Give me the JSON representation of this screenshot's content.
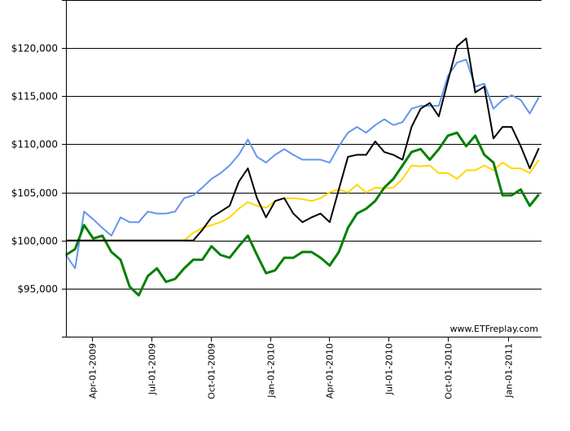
{
  "chart_data": {
    "type": "line",
    "title": "",
    "xlabel": "",
    "ylabel": "",
    "xlim": [
      "2009-02-20",
      "2011-02-22"
    ],
    "ylim": [
      90000,
      125000
    ],
    "grid": "horizontal",
    "legend": "none",
    "watermark": "www.ETFreplay.com",
    "y_ticks": [
      {
        "value": 95000,
        "label": "$95,000"
      },
      {
        "value": 100000,
        "label": "$100,000"
      },
      {
        "value": 105000,
        "label": "$105,000"
      },
      {
        "value": 110000,
        "label": "$110,000"
      },
      {
        "value": 115000,
        "label": "$115,000"
      },
      {
        "value": 120000,
        "label": "$120,000"
      }
    ],
    "x_ticks": [
      {
        "date": "2009-04-01",
        "label": "Apr-01-2009"
      },
      {
        "date": "2009-07-01",
        "label": "Jul-01-2009"
      },
      {
        "date": "2009-10-01",
        "label": "Oct-01-2009"
      },
      {
        "date": "2010-01-01",
        "label": "Jan-01-2010"
      },
      {
        "date": "2010-04-01",
        "label": "Apr-01-2010"
      },
      {
        "date": "2010-07-01",
        "label": "Jul-01-2010"
      },
      {
        "date": "2010-10-01",
        "label": "Oct-01-2010"
      },
      {
        "date": "2011-01-01",
        "label": "Jan-01-2011"
      }
    ],
    "x": [
      "2009-02-20",
      "2009-03-06",
      "2009-03-20",
      "2009-04-03",
      "2009-04-17",
      "2009-05-01",
      "2009-05-15",
      "2009-05-29",
      "2009-06-12",
      "2009-06-26",
      "2009-07-10",
      "2009-07-24",
      "2009-08-07",
      "2009-08-21",
      "2009-09-04",
      "2009-09-18",
      "2009-10-02",
      "2009-10-16",
      "2009-10-30",
      "2009-11-13",
      "2009-11-27",
      "2009-12-11",
      "2009-12-25",
      "2010-01-08",
      "2010-01-22",
      "2010-02-05",
      "2010-02-19",
      "2010-03-05",
      "2010-03-19",
      "2010-04-02",
      "2010-04-16",
      "2010-04-30",
      "2010-05-14",
      "2010-05-28",
      "2010-06-11",
      "2010-06-25",
      "2010-07-09",
      "2010-07-23",
      "2010-08-06",
      "2010-08-20",
      "2010-09-03",
      "2010-09-17",
      "2010-10-01",
      "2010-10-15",
      "2010-10-29",
      "2010-11-12",
      "2010-11-26",
      "2010-12-10",
      "2010-12-24",
      "2011-01-07",
      "2011-01-21",
      "2011-02-04",
      "2011-02-18"
    ],
    "series": [
      {
        "color": "#6495ED",
        "values": [
          98500,
          97100,
          103000,
          102200,
          101300,
          100500,
          102400,
          101900,
          101900,
          103000,
          102800,
          102800,
          103000,
          104400,
          104700,
          105500,
          106400,
          107000,
          107800,
          108900,
          110500,
          108700,
          108100,
          108900,
          109500,
          108900,
          108400,
          108400,
          108400,
          108100,
          109800,
          111200,
          111800,
          111200,
          112000,
          112600,
          112000,
          112300,
          113700,
          114000,
          114000,
          114000,
          117100,
          118500,
          118800,
          116000,
          116300,
          113700,
          114600,
          115100,
          114600,
          113200,
          114900
        ]
      },
      {
        "color": "#FFD700",
        "values": [
          100000,
          100000,
          100000,
          100000,
          100000,
          100000,
          100000,
          100000,
          100000,
          100000,
          100000,
          100000,
          100000,
          100000,
          100800,
          101300,
          101600,
          101900,
          102400,
          103300,
          104000,
          103600,
          103400,
          104100,
          104400,
          104400,
          104300,
          104100,
          104400,
          105000,
          105300,
          105000,
          105800,
          105000,
          105500,
          105400,
          105500,
          106400,
          107800,
          107700,
          107800,
          107000,
          107000,
          106400,
          107300,
          107300,
          107800,
          107300,
          108100,
          107500,
          107500,
          107000,
          108400
        ]
      },
      {
        "color": "#008000",
        "values": [
          98500,
          99100,
          101600,
          100200,
          100500,
          98800,
          98000,
          95200,
          94300,
          96300,
          97100,
          95700,
          96000,
          97100,
          98000,
          98000,
          99400,
          98500,
          98200,
          99400,
          100500,
          98500,
          96600,
          96900,
          98200,
          98200,
          98800,
          98800,
          98200,
          97400,
          98800,
          101300,
          102800,
          103300,
          104100,
          105500,
          106400,
          107800,
          109200,
          109500,
          108400,
          109500,
          110900,
          111200,
          109800,
          110900,
          108900,
          108100,
          104700,
          104700,
          105300,
          103600,
          104800
        ]
      },
      {
        "color": "#000000",
        "values": [
          100000,
          100000,
          100000,
          100000,
          100000,
          100000,
          100000,
          100000,
          100000,
          100000,
          100000,
          100000,
          100000,
          100000,
          100000,
          101100,
          102400,
          103000,
          103600,
          106100,
          107500,
          104400,
          102400,
          104100,
          104400,
          102800,
          101900,
          102400,
          102800,
          101900,
          105300,
          108700,
          108900,
          108900,
          110300,
          109200,
          108900,
          108400,
          111800,
          113700,
          114300,
          112900,
          116600,
          120200,
          121000,
          115400,
          116000,
          110600,
          111800,
          111800,
          109800,
          107500,
          109600
        ]
      }
    ]
  }
}
